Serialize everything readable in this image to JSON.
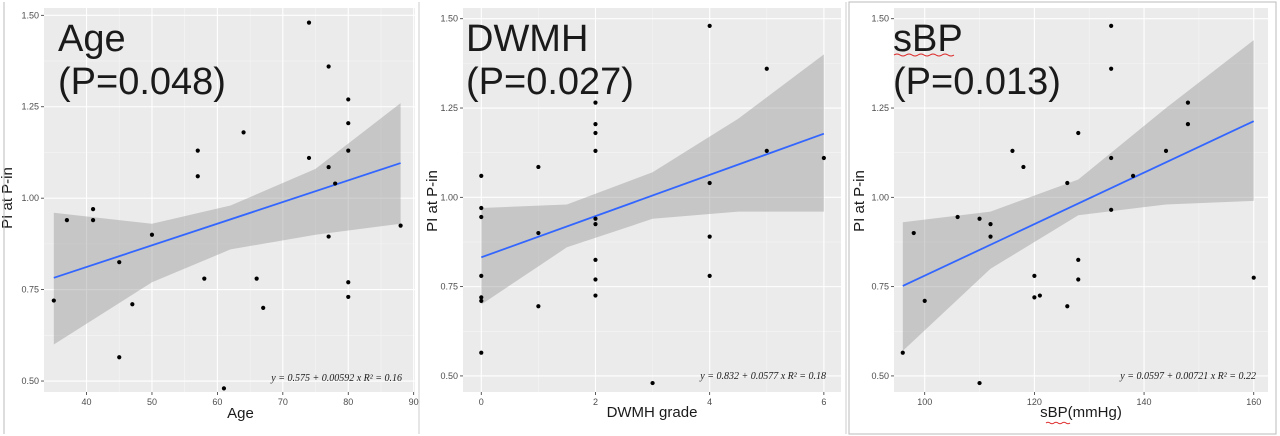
{
  "chart_data": [
    {
      "type": "scatter",
      "title_line1": "Age",
      "title_line2": "(P=0.048)",
      "xlabel": "Age",
      "ylabel": "PI at P-in",
      "xticks": [
        40,
        50,
        60,
        70,
        80,
        90
      ],
      "yticks": [
        0.5,
        0.75,
        1.0,
        1.25,
        1.5
      ],
      "ytick_labels": [
        "0.50",
        "0.75",
        "1.00",
        "1.25",
        "1.50"
      ],
      "xlim": [
        33.5,
        90.2
      ],
      "ylim": [
        0.47,
        1.52
      ],
      "points": [
        {
          "x": 35,
          "y": 0.72
        },
        {
          "x": 37,
          "y": 0.94
        },
        {
          "x": 41,
          "y": 0.97
        },
        {
          "x": 41,
          "y": 0.94
        },
        {
          "x": 45,
          "y": 0.825
        },
        {
          "x": 45,
          "y": 0.565
        },
        {
          "x": 47,
          "y": 0.71
        },
        {
          "x": 50,
          "y": 0.9
        },
        {
          "x": 57,
          "y": 1.13
        },
        {
          "x": 57,
          "y": 1.06
        },
        {
          "x": 58,
          "y": 0.78
        },
        {
          "x": 61,
          "y": 0.48
        },
        {
          "x": 64,
          "y": 1.18
        },
        {
          "x": 66,
          "y": 0.78
        },
        {
          "x": 67,
          "y": 0.7
        },
        {
          "x": 74,
          "y": 1.48
        },
        {
          "x": 74,
          "y": 1.11
        },
        {
          "x": 77,
          "y": 1.36
        },
        {
          "x": 77,
          "y": 1.085
        },
        {
          "x": 77,
          "y": 0.895
        },
        {
          "x": 78,
          "y": 1.04
        },
        {
          "x": 80,
          "y": 1.27
        },
        {
          "x": 80,
          "y": 1.205
        },
        {
          "x": 80,
          "y": 1.13
        },
        {
          "x": 80,
          "y": 0.77
        },
        {
          "x": 80,
          "y": 0.73
        },
        {
          "x": 88,
          "y": 0.925
        }
      ],
      "fit": {
        "intercept": 0.575,
        "slope": 0.00592
      },
      "band": {
        "x": [
          35,
          50,
          62,
          75,
          88
        ],
        "lower": [
          0.6,
          0.77,
          0.86,
          0.9,
          0.93
        ],
        "upper": [
          0.96,
          0.93,
          0.98,
          1.08,
          1.26
        ]
      },
      "equation": "y = 0.575 + 0.00592 x   R² = 0.16",
      "frame": "left"
    },
    {
      "type": "scatter",
      "title_line1": "DWMH",
      "title_line2": "(P=0.027)",
      "xlabel": "DWMH grade",
      "ylabel": "PI at P-in",
      "xticks": [
        0,
        2,
        4,
        6
      ],
      "yticks": [
        0.5,
        0.75,
        1.0,
        1.25,
        1.5
      ],
      "ytick_labels": [
        "0.50",
        "0.75",
        "1.00",
        "1.25",
        "1.50"
      ],
      "xlim": [
        -0.32,
        6.3
      ],
      "ylim": [
        0.455,
        1.53
      ],
      "points": [
        {
          "x": 0,
          "y": 1.06
        },
        {
          "x": 0,
          "y": 0.97
        },
        {
          "x": 0,
          "y": 0.945
        },
        {
          "x": 0,
          "y": 0.78
        },
        {
          "x": 0,
          "y": 0.72
        },
        {
          "x": 0,
          "y": 0.71
        },
        {
          "x": 0,
          "y": 0.565
        },
        {
          "x": 1,
          "y": 1.085
        },
        {
          "x": 1,
          "y": 0.9
        },
        {
          "x": 1,
          "y": 0.695
        },
        {
          "x": 2,
          "y": 1.265
        },
        {
          "x": 2,
          "y": 1.205
        },
        {
          "x": 2,
          "y": 1.18
        },
        {
          "x": 2,
          "y": 1.13
        },
        {
          "x": 2,
          "y": 0.94
        },
        {
          "x": 2,
          "y": 0.925
        },
        {
          "x": 2,
          "y": 0.825
        },
        {
          "x": 2,
          "y": 0.77
        },
        {
          "x": 2,
          "y": 0.725
        },
        {
          "x": 3,
          "y": 0.48
        },
        {
          "x": 4,
          "y": 1.48
        },
        {
          "x": 4,
          "y": 1.04
        },
        {
          "x": 4,
          "y": 0.89
        },
        {
          "x": 4,
          "y": 0.78
        },
        {
          "x": 5,
          "y": 1.36
        },
        {
          "x": 5,
          "y": 1.13
        },
        {
          "x": 6,
          "y": 1.11
        }
      ],
      "fit": {
        "intercept": 0.832,
        "slope": 0.0577
      },
      "band": {
        "x": [
          0,
          1.5,
          3,
          4.5,
          6
        ],
        "lower": [
          0.7,
          0.86,
          0.94,
          0.96,
          0.96
        ],
        "upper": [
          0.97,
          0.98,
          1.07,
          1.22,
          1.4
        ]
      },
      "equation": "y = 0.832 + 0.0577 x   R² = 0.18",
      "frame": "none"
    },
    {
      "type": "scatter",
      "title_line1": "sBP",
      "title_line2": "(P=0.013)",
      "xlabel": "sBP(mmHg)",
      "ylabel": "PI at P-in",
      "xticks": [
        100,
        120,
        140,
        160
      ],
      "yticks": [
        0.5,
        0.75,
        1.0,
        1.25,
        1.5
      ],
      "ytick_labels": [
        "0.50",
        "0.75",
        "1.00",
        "1.25",
        "1.50"
      ],
      "xlim": [
        94.4,
        162.6
      ],
      "ylim": [
        0.455,
        1.53
      ],
      "points": [
        {
          "x": 96,
          "y": 0.565
        },
        {
          "x": 98,
          "y": 0.9
        },
        {
          "x": 100,
          "y": 0.71
        },
        {
          "x": 106,
          "y": 0.945
        },
        {
          "x": 110,
          "y": 0.94
        },
        {
          "x": 110,
          "y": 0.48
        },
        {
          "x": 112,
          "y": 0.925
        },
        {
          "x": 112,
          "y": 0.89
        },
        {
          "x": 116,
          "y": 1.13
        },
        {
          "x": 118,
          "y": 1.085
        },
        {
          "x": 120,
          "y": 0.78
        },
        {
          "x": 120,
          "y": 0.72
        },
        {
          "x": 121,
          "y": 0.725
        },
        {
          "x": 126,
          "y": 1.04
        },
        {
          "x": 126,
          "y": 0.695
        },
        {
          "x": 128,
          "y": 1.18
        },
        {
          "x": 128,
          "y": 0.825
        },
        {
          "x": 128,
          "y": 0.77
        },
        {
          "x": 134,
          "y": 1.48
        },
        {
          "x": 134,
          "y": 1.36
        },
        {
          "x": 134,
          "y": 1.11
        },
        {
          "x": 134,
          "y": 0.965
        },
        {
          "x": 138,
          "y": 1.06
        },
        {
          "x": 144,
          "y": 1.13
        },
        {
          "x": 148,
          "y": 1.265
        },
        {
          "x": 148,
          "y": 1.205
        },
        {
          "x": 160,
          "y": 0.775
        }
      ],
      "fit": {
        "intercept": 0.0597,
        "slope": 0.00721
      },
      "band": {
        "x": [
          96,
          112,
          128,
          144,
          160
        ],
        "lower": [
          0.57,
          0.8,
          0.95,
          0.98,
          0.99
        ],
        "upper": [
          0.93,
          0.96,
          1.05,
          1.25,
          1.44
        ]
      },
      "equation": "y = 0.0597 + 0.00721 x   R² = 0.22",
      "frame": "box"
    }
  ]
}
